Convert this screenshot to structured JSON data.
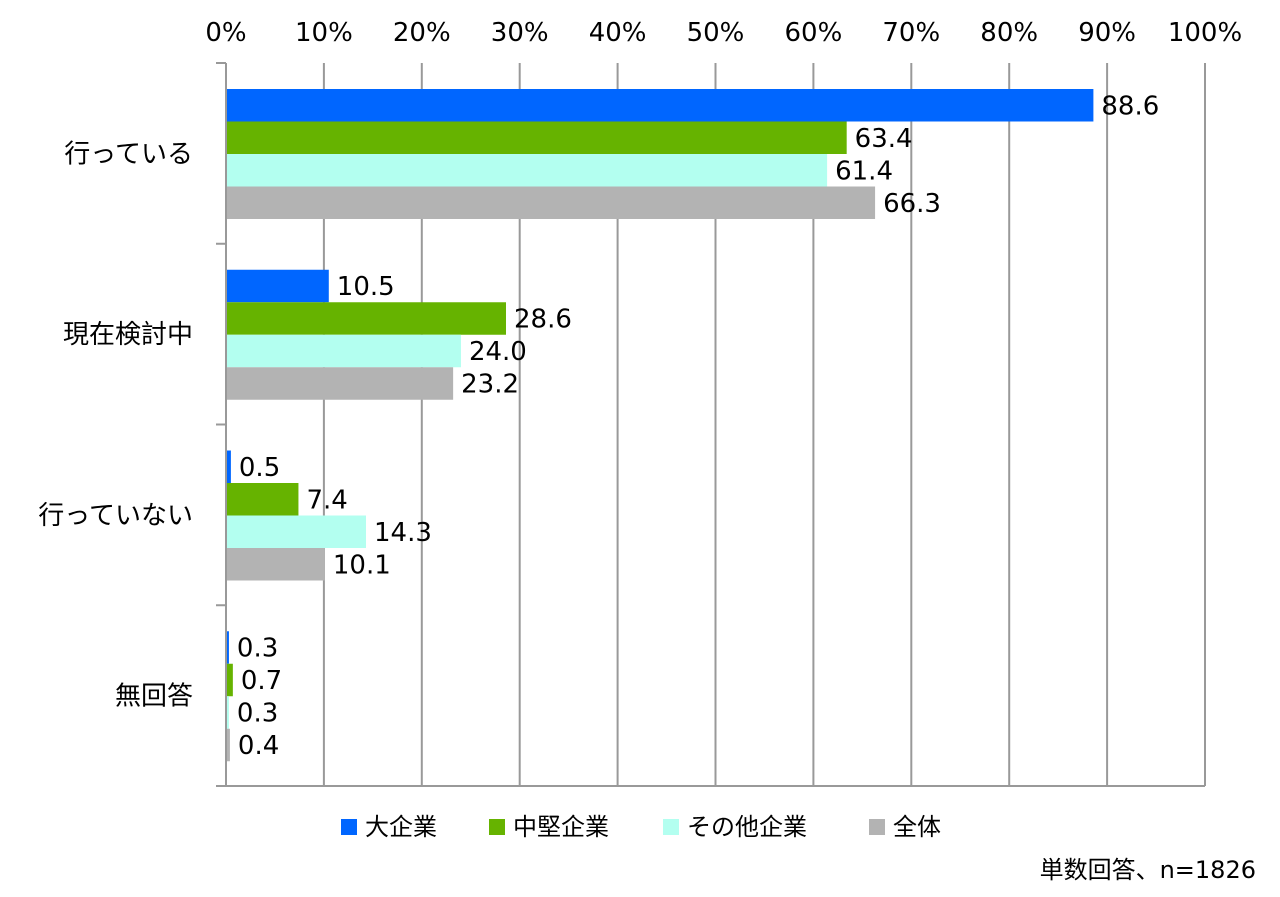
{
  "chart_data": {
    "type": "bar",
    "orientation": "horizontal",
    "title": "",
    "xlabel": "",
    "ylabel": "",
    "xlim": [
      0,
      100
    ],
    "x_ticks": [
      "0%",
      "10%",
      "20%",
      "30%",
      "40%",
      "50%",
      "60%",
      "70%",
      "80%",
      "90%",
      "100%"
    ],
    "categories": [
      "行っている",
      "現在検討中",
      "行っていない",
      "無回答"
    ],
    "series": [
      {
        "name": "大企業",
        "color": "#0066ff",
        "values": [
          88.6,
          10.5,
          0.5,
          0.3
        ],
        "labels": [
          "88.6",
          "10.5",
          "0.5",
          "0.3"
        ]
      },
      {
        "name": "中堅企業",
        "color": "#66b300",
        "values": [
          63.4,
          28.6,
          7.4,
          0.7
        ],
        "labels": [
          "63.4",
          "28.6",
          "7.4",
          "0.7"
        ]
      },
      {
        "name": "その他企業",
        "color": "#b3fff0",
        "values": [
          61.4,
          24.0,
          14.3,
          0.3
        ],
        "labels": [
          "61.4",
          "24.0",
          "14.3",
          "0.3"
        ]
      },
      {
        "name": "全体",
        "color": "#b3b3b3",
        "values": [
          66.3,
          23.2,
          10.1,
          0.4
        ],
        "labels": [
          "66.3",
          "23.2",
          "10.1",
          "0.4"
        ]
      }
    ],
    "grid": true,
    "legend": "bottom",
    "footnote": "単数回答、n=1826"
  }
}
